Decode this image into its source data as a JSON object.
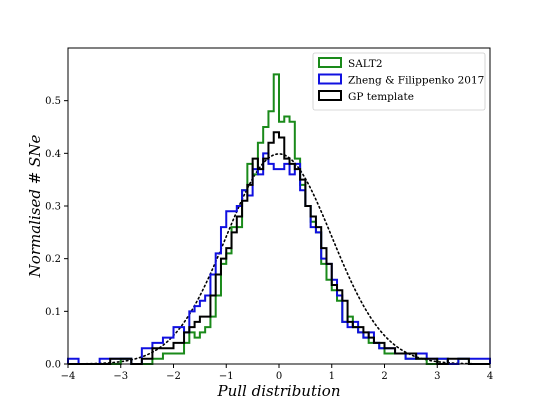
{
  "chart_data": {
    "type": "histogram",
    "xlabel": "Pull distribution",
    "ylabel": "Normalised # SNe",
    "xlim": [
      -4,
      4
    ],
    "ylim": [
      0,
      0.6
    ],
    "xticks": [
      -4,
      -3,
      -2,
      -1,
      0,
      1,
      2,
      3,
      4
    ],
    "yticks": [
      0.0,
      0.1,
      0.2,
      0.3,
      0.4,
      0.5
    ],
    "ytick_labels": [
      "0.0",
      "0.1",
      "0.2",
      "0.3",
      "0.4",
      "0.5"
    ],
    "legend_position": "top-right",
    "grid": false,
    "bin_edges": [
      -4.0,
      -3.8,
      -3.6,
      -3.4,
      -3.2,
      -3.0,
      -2.8,
      -2.6,
      -2.4,
      -2.2,
      -2.0,
      -1.9,
      -1.8,
      -1.7,
      -1.6,
      -1.5,
      -1.4,
      -1.3,
      -1.2,
      -1.1,
      -1.0,
      -0.9,
      -0.8,
      -0.7,
      -0.6,
      -0.5,
      -0.4,
      -0.3,
      -0.2,
      -0.1,
      0.0,
      0.1,
      0.2,
      0.3,
      0.4,
      0.5,
      0.6,
      0.7,
      0.8,
      0.9,
      1.0,
      1.1,
      1.2,
      1.3,
      1.4,
      1.5,
      1.6,
      1.7,
      1.8,
      1.9,
      2.0,
      2.2,
      2.4,
      2.6,
      2.8,
      3.0,
      3.2,
      3.4,
      3.6,
      3.8,
      4.0
    ],
    "series": [
      {
        "name": "SALT2",
        "color": "#1a8a1a",
        "values": [
          0.0,
          0.0,
          0.0,
          0.0,
          0.0,
          0.01,
          0.0,
          0.0,
          0.01,
          0.02,
          0.02,
          0.02,
          0.04,
          0.06,
          0.05,
          0.06,
          0.07,
          0.09,
          0.13,
          0.19,
          0.21,
          0.26,
          0.26,
          0.33,
          0.38,
          0.36,
          0.42,
          0.45,
          0.48,
          0.55,
          0.46,
          0.47,
          0.46,
          0.39,
          0.34,
          0.3,
          0.27,
          0.25,
          0.19,
          0.16,
          0.14,
          0.12,
          0.08,
          0.09,
          0.07,
          0.06,
          0.05,
          0.04,
          0.04,
          0.03,
          0.02,
          0.02,
          0.01,
          0.01,
          0.0,
          0.01,
          0.0,
          0.01,
          0.0,
          0.0
        ]
      },
      {
        "name": "Zheng & Filippenko 2017",
        "color": "#1010e0",
        "values": [
          0.01,
          0.0,
          0.0,
          0.01,
          0.01,
          0.01,
          0.0,
          0.03,
          0.04,
          0.05,
          0.07,
          0.07,
          0.06,
          0.1,
          0.11,
          0.12,
          0.13,
          0.17,
          0.21,
          0.26,
          0.29,
          0.29,
          0.3,
          0.33,
          0.32,
          0.37,
          0.36,
          0.4,
          0.38,
          0.37,
          0.37,
          0.38,
          0.36,
          0.38,
          0.33,
          0.3,
          0.26,
          0.25,
          0.2,
          0.19,
          0.16,
          0.13,
          0.08,
          0.07,
          0.08,
          0.06,
          0.05,
          0.06,
          0.04,
          0.03,
          0.03,
          0.02,
          0.01,
          0.02,
          0.01,
          0.01,
          0.0,
          0.01,
          0.01,
          0.01
        ]
      },
      {
        "name": "GP template",
        "color": "#000000",
        "values": [
          0.0,
          0.0,
          0.0,
          0.0,
          0.01,
          0.01,
          0.0,
          0.01,
          0.03,
          0.03,
          0.04,
          0.04,
          0.06,
          0.07,
          0.08,
          0.09,
          0.09,
          0.13,
          0.17,
          0.2,
          0.22,
          0.25,
          0.28,
          0.31,
          0.34,
          0.39,
          0.37,
          0.39,
          0.42,
          0.44,
          0.43,
          0.39,
          0.38,
          0.37,
          0.35,
          0.3,
          0.28,
          0.26,
          0.22,
          0.19,
          0.15,
          0.14,
          0.12,
          0.08,
          0.07,
          0.07,
          0.06,
          0.05,
          0.04,
          0.04,
          0.03,
          0.02,
          0.02,
          0.01,
          0.01,
          0.0,
          0.01,
          0.01,
          0.0,
          0.0
        ]
      }
    ],
    "reference_curve": {
      "style": "dotted",
      "color": "#000000",
      "distribution": "normal",
      "mean": 0,
      "sigma": 1
    }
  }
}
